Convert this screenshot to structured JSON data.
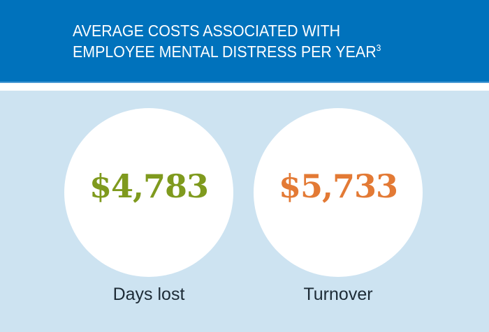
{
  "header": {
    "title_line1": "AVERAGE COSTS ASSOCIATED WITH",
    "title_line2": "EMPLOYEE MENTAL DISTRESS PER YEAR",
    "footnote_marker": "3"
  },
  "stats": [
    {
      "value": "$4,783",
      "label": "Days lost",
      "color": "#7f9a1e"
    },
    {
      "value": "$5,733",
      "label": "Turnover",
      "color": "#e37a35"
    }
  ],
  "colors": {
    "header_bg": "#0072bc",
    "page_bg": "#cde3f1",
    "circle_bg": "#ffffff",
    "label_text": "#1d2b36"
  }
}
